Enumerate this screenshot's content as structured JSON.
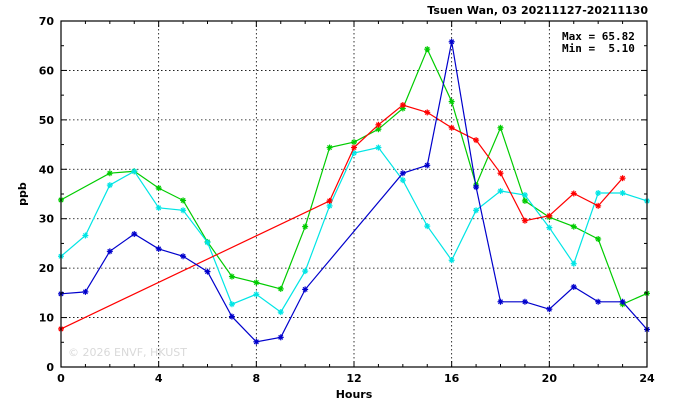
{
  "chart_data": {
    "type": "line",
    "title": "Tsuen Wan, 03 20211127-20211130",
    "stats": {
      "max_line": "Max = 65.82",
      "min_line": "Min =  5.10"
    },
    "xlabel": "Hours",
    "ylabel": "ppb",
    "xlim": [
      0,
      24
    ],
    "ylim": [
      0,
      70
    ],
    "xticks": [
      0,
      4,
      8,
      12,
      16,
      20,
      24
    ],
    "yticks": [
      0,
      10,
      20,
      30,
      40,
      50,
      60,
      70
    ],
    "grid": true,
    "watermark": "© 2026  ENVF, HKUST",
    "series": [
      {
        "color": "#00cc00",
        "x": [
          0,
          2,
          3,
          4,
          5,
          6,
          7,
          8,
          9,
          10,
          11,
          12,
          13,
          14,
          15,
          16,
          17,
          18,
          19,
          20,
          21,
          22,
          23,
          24
        ],
        "y": [
          33.8,
          39.2,
          39.6,
          36.2,
          33.7,
          25.3,
          18.3,
          17.1,
          15.8,
          28.4,
          44.4,
          45.5,
          48.1,
          52.3,
          64.3,
          53.7,
          36.8,
          48.4,
          33.6,
          30.3,
          28.4,
          25.9,
          12.7,
          14.9
        ]
      },
      {
        "color": "#00e5e5",
        "x": [
          0,
          1,
          2,
          3,
          4,
          5,
          6,
          7,
          8,
          9,
          10,
          11,
          12,
          13,
          14,
          15,
          16,
          17,
          18,
          19,
          20,
          21,
          22,
          23,
          24
        ],
        "y": [
          22.4,
          26.6,
          36.8,
          39.6,
          32.2,
          31.7,
          25.2,
          12.7,
          14.7,
          11.1,
          19.4,
          32.6,
          43.3,
          44.4,
          37.8,
          28.5,
          21.6,
          31.7,
          35.6,
          34.8,
          28.2,
          20.9,
          35.2,
          35.2,
          33.6
        ]
      },
      {
        "color": "#ff0000",
        "x": [
          0,
          11,
          12,
          13,
          14,
          15,
          16,
          17,
          18,
          19,
          20,
          21,
          22,
          23
        ],
        "y": [
          7.7,
          33.6,
          44.4,
          49.0,
          53.0,
          51.5,
          48.4,
          45.9,
          39.2,
          29.6,
          30.6,
          35.1,
          32.6,
          38.2
        ]
      },
      {
        "color": "#0000cc",
        "x": [
          0,
          1,
          2,
          3,
          4,
          5,
          6,
          7,
          8,
          9,
          10,
          14,
          15,
          16,
          17,
          18,
          19,
          20,
          21,
          22,
          23,
          24
        ],
        "y": [
          14.8,
          15.2,
          23.4,
          26.9,
          23.9,
          22.4,
          19.3,
          10.2,
          5.1,
          6.0,
          15.7,
          39.2,
          40.8,
          65.8,
          36.4,
          13.2,
          13.2,
          11.7,
          16.2,
          13.2,
          13.2,
          7.6
        ]
      }
    ]
  }
}
